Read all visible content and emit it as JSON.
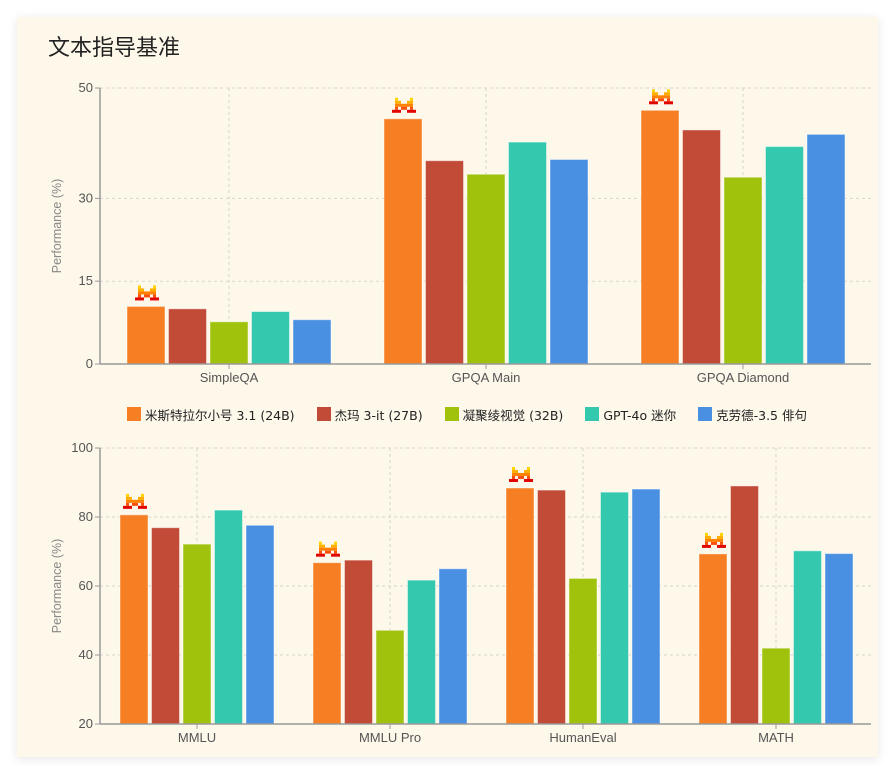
{
  "title": "文本指导基准",
  "colors": {
    "background": "#fef8eb",
    "series": [
      "#f57f22",
      "#c24b37",
      "#a0c20d",
      "#34c8ae",
      "#4a90e2"
    ],
    "grid": "#d8d5cc",
    "axis": "#999999",
    "text": "#555555"
  },
  "legend": [
    {
      "label": "米斯特拉尔小号 3.1 (24B)",
      "color": "#f57f22"
    },
    {
      "label": "杰玛 3-it (27B)",
      "color": "#c24b37"
    },
    {
      "label": "凝聚绫视觉 (32B)",
      "color": "#a0c20d"
    },
    {
      "label": "GPT-4o 迷你",
      "color": "#34c8ae"
    },
    {
      "label": "克劳德-3.5 俳句",
      "color": "#4a90e2"
    }
  ],
  "chart_data": [
    {
      "type": "bar",
      "title": "文本指导基准",
      "xlabel": "",
      "ylabel": "Performance (%)",
      "ylim": [
        0,
        50
      ],
      "yticks": [
        0,
        15,
        30,
        50
      ],
      "grid": true,
      "legend_position": "below",
      "highlight_marker": "mistral-logo above first series",
      "categories": [
        "SimpleQA",
        "GPQA Main",
        "GPQA Diamond"
      ],
      "series": [
        {
          "name": "米斯特拉尔小号 3.1 (24B)",
          "values": [
            10.43,
            44.42,
            45.96
          ]
        },
        {
          "name": "杰玛 3-it (27B)",
          "values": [
            10.0,
            36.83,
            42.4
          ]
        },
        {
          "name": "凝聚绫视觉 (32B)",
          "values": [
            7.65,
            34.38,
            33.84
          ]
        },
        {
          "name": "GPT-4o 迷你",
          "values": [
            9.5,
            40.2,
            39.39
          ]
        },
        {
          "name": "克劳德-3.5 俳句",
          "values": [
            8.02,
            37.05,
            41.6
          ]
        }
      ]
    },
    {
      "type": "bar",
      "xlabel": "",
      "ylabel": "Performance (%)",
      "ylim": [
        20,
        100
      ],
      "yticks": [
        20,
        40,
        60,
        80,
        100
      ],
      "grid": true,
      "highlight_marker": "mistral-logo above first series",
      "categories": [
        "MMLU",
        "MMLU Pro",
        "HumanEval",
        "MATH"
      ],
      "series": [
        {
          "name": "米斯特拉尔小号 3.1 (24B)",
          "values": [
            80.62,
            66.76,
            88.41,
            69.3
          ]
        },
        {
          "name": "杰玛 3-it (27B)",
          "values": [
            76.9,
            67.5,
            87.8,
            89.0
          ]
        },
        {
          "name": "凝聚绫视觉 (32B)",
          "values": [
            72.14,
            47.16,
            62.2,
            41.98
          ]
        },
        {
          "name": "GPT-4o 迷你",
          "values": [
            82.0,
            61.7,
            87.2,
            70.2
          ]
        },
        {
          "name": "克劳德-3.5 俳句",
          "values": [
            77.6,
            65.0,
            88.1,
            69.4
          ]
        }
      ]
    }
  ]
}
